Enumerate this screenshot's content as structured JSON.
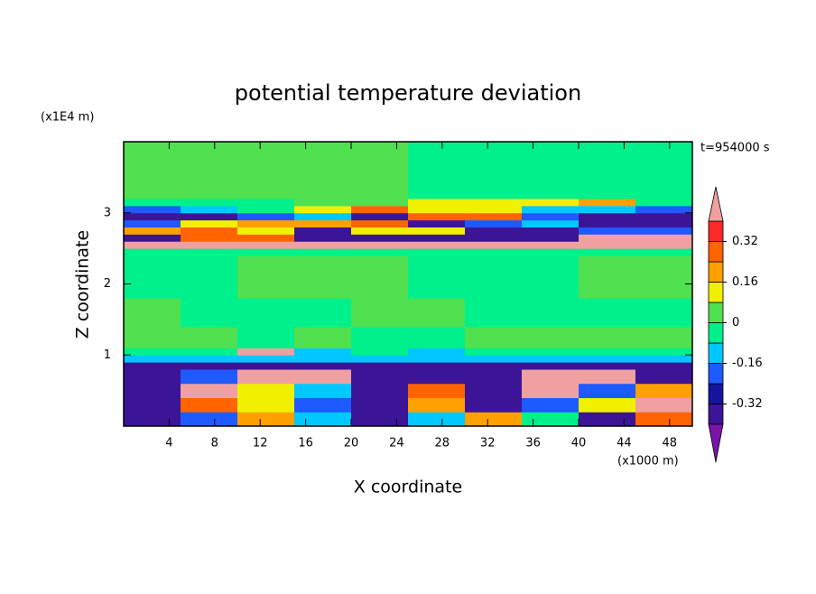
{
  "chart_data": {
    "type": "contour",
    "title": "potential temperature deviation",
    "x_label": "X coordinate",
    "y_label": "Z coordinate",
    "x_unit": "(x1000 m)",
    "y_unit": "(x1E4 m)",
    "time_label": "t=954000 s",
    "xlim": [
      0,
      50
    ],
    "ylim": [
      0,
      4
    ],
    "xticks": [
      4,
      8,
      12,
      16,
      20,
      24,
      28,
      32,
      36,
      40,
      44,
      48
    ],
    "yticks": [
      1,
      2,
      3
    ],
    "x_edges": [
      0,
      5,
      10,
      15,
      20,
      25,
      30,
      35,
      40,
      45,
      50
    ],
    "z_edges": [
      0,
      0.2,
      0.4,
      0.6,
      0.8,
      0.9,
      1.0,
      1.1,
      1.4,
      1.8,
      2.4,
      2.5,
      2.6,
      2.7,
      2.8,
      2.9,
      3.0,
      3.1,
      3.2,
      3.4,
      4.0
    ],
    "field": [
      [
        -0.36,
        -0.2,
        0.2,
        -0.1,
        -0.36,
        -0.1,
        0.2,
        -0.04,
        -0.36,
        0.28
      ],
      [
        -0.36,
        0.28,
        0.1,
        -0.2,
        -0.36,
        0.2,
        -0.36,
        -0.2,
        0.1,
        0.45
      ],
      [
        -0.36,
        0.45,
        0.1,
        -0.1,
        -0.36,
        0.28,
        -0.36,
        0.45,
        -0.2,
        0.2
      ],
      [
        -0.36,
        -0.2,
        0.45,
        0.45,
        -0.36,
        -0.36,
        -0.36,
        0.45,
        0.45,
        -0.36
      ],
      [
        -0.36,
        -0.36,
        -0.36,
        -0.36,
        -0.36,
        -0.36,
        -0.36,
        -0.36,
        -0.36,
        -0.36
      ],
      [
        -0.12,
        -0.12,
        -0.12,
        -0.12,
        -0.12,
        -0.12,
        -0.12,
        -0.12,
        -0.12,
        -0.12
      ],
      [
        -0.04,
        -0.04,
        0.45,
        -0.12,
        -0.04,
        -0.12,
        -0.04,
        -0.04,
        -0.04,
        -0.04
      ],
      [
        0.04,
        0.04,
        -0.04,
        0.04,
        -0.04,
        -0.04,
        0.04,
        0.04,
        0.04,
        0.04
      ],
      [
        0.04,
        -0.04,
        -0.04,
        -0.04,
        0.04,
        0.04,
        -0.04,
        -0.04,
        -0.04,
        -0.04
      ],
      [
        -0.04,
        -0.04,
        0.04,
        0.04,
        0.04,
        -0.04,
        -0.04,
        -0.04,
        0.04,
        0.04
      ],
      [
        -0.04,
        -0.04,
        -0.04,
        -0.04,
        -0.04,
        -0.04,
        -0.04,
        -0.04,
        -0.04,
        -0.04
      ],
      [
        0.45,
        0.45,
        0.45,
        0.45,
        0.45,
        0.45,
        0.45,
        0.45,
        0.45,
        0.45
      ],
      [
        -0.36,
        0.28,
        0.28,
        -0.36,
        -0.36,
        -0.36,
        -0.36,
        -0.36,
        0.45,
        0.45
      ],
      [
        0.2,
        0.28,
        0.1,
        -0.36,
        0.1,
        0.1,
        -0.36,
        -0.36,
        -0.2,
        -0.2
      ],
      [
        -0.2,
        0.1,
        0.2,
        0.2,
        0.28,
        -0.36,
        -0.2,
        -0.12,
        -0.36,
        -0.36
      ],
      [
        -0.36,
        -0.36,
        -0.2,
        -0.12,
        -0.36,
        0.28,
        0.28,
        -0.2,
        -0.36,
        -0.36
      ],
      [
        -0.2,
        -0.12,
        -0.04,
        0.1,
        0.28,
        0.1,
        0.1,
        -0.12,
        -0.12,
        -0.2
      ],
      [
        -0.04,
        -0.04,
        -0.04,
        0.04,
        0.04,
        0.1,
        0.1,
        0.1,
        0.2,
        -0.04
      ],
      [
        0.04,
        0.04,
        0.04,
        0.04,
        0.04,
        -0.04,
        -0.04,
        -0.04,
        -0.04,
        -0.04
      ],
      [
        0.04,
        0.04,
        0.04,
        0.04,
        0.04,
        -0.04,
        -0.04,
        -0.04,
        -0.04,
        -0.04
      ]
    ],
    "levels": [
      -0.4,
      -0.32,
      -0.24,
      -0.16,
      -0.08,
      0,
      0.08,
      0.16,
      0.24,
      0.32,
      0.4
    ],
    "colors": [
      "#7a14a8",
      "#3c1496",
      "#1414a0",
      "#1e5aff",
      "#00c8ff",
      "#00f08c",
      "#50e050",
      "#f0f000",
      "#ffa000",
      "#ff6400",
      "#ff2828",
      "#f0a0a0"
    ],
    "colorbar_ticks": [
      -0.32,
      -0.16,
      0,
      0.16,
      0.32
    ]
  }
}
